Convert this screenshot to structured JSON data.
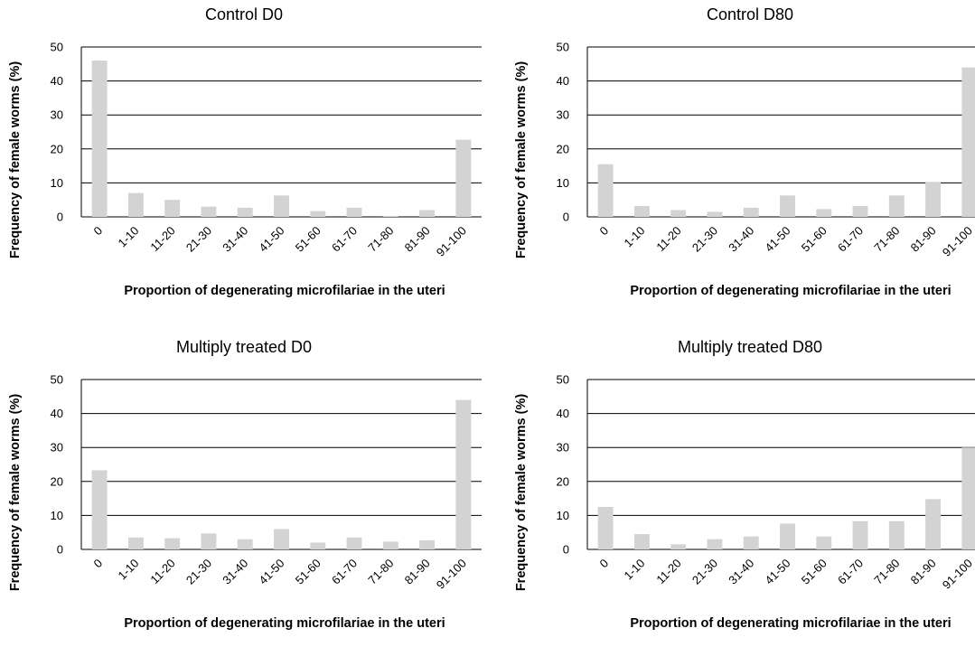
{
  "chart_data": [
    {
      "type": "bar",
      "title": "Control D0",
      "xlabel": "Proportion of degenerating microfilariae in the uteri",
      "ylabel": "Frequency of female worms (%)",
      "categories": [
        "0",
        "1-10",
        "11-20",
        "21-30",
        "31-40",
        "41-50",
        "51-60",
        "61-70",
        "71-80",
        "81-90",
        "91-100"
      ],
      "values": [
        46,
        7,
        5,
        3,
        2.7,
        6.3,
        1.7,
        2.7,
        0.3,
        2,
        22.7
      ],
      "ylim": [
        0,
        50
      ],
      "yticks": [
        0,
        10,
        20,
        30,
        40,
        50
      ],
      "grid": true,
      "bar_color": "#d3d3d3"
    },
    {
      "type": "bar",
      "title": "Control D80",
      "xlabel": "Proportion of degenerating microfilariae in the uteri",
      "ylabel": "Frequency of female worms (%)",
      "categories": [
        "0",
        "1-10",
        "11-20",
        "21-30",
        "31-40",
        "41-50",
        "51-60",
        "61-70",
        "71-80",
        "81-90",
        "91-100"
      ],
      "values": [
        15.5,
        3.2,
        2,
        1.5,
        2.7,
        6.3,
        2.3,
        3.2,
        6.3,
        10.3,
        44
      ],
      "ylim": [
        0,
        50
      ],
      "yticks": [
        0,
        10,
        20,
        30,
        40,
        50
      ],
      "grid": true,
      "bar_color": "#d3d3d3"
    },
    {
      "type": "bar",
      "title": "Multiply treated D0",
      "xlabel": "Proportion of degenerating microfilariae in the uteri",
      "ylabel": "Frequency of female worms (%)",
      "categories": [
        "0",
        "1-10",
        "11-20",
        "21-30",
        "31-40",
        "41-50",
        "51-60",
        "61-70",
        "71-80",
        "81-90",
        "91-100"
      ],
      "values": [
        23.3,
        3.5,
        3.3,
        4.7,
        3,
        6,
        2,
        3.5,
        2.3,
        2.7,
        44
      ],
      "ylim": [
        0,
        50
      ],
      "yticks": [
        0,
        10,
        20,
        30,
        40,
        50
      ],
      "grid": true,
      "bar_color": "#d3d3d3"
    },
    {
      "type": "bar",
      "title": "Multiply treated D80",
      "xlabel": "Proportion of degenerating microfilariae in the uteri",
      "ylabel": "Frequency of female worms (%)",
      "categories": [
        "0",
        "1-10",
        "11-20",
        "21-30",
        "31-40",
        "41-50",
        "51-60",
        "61-70",
        "71-80",
        "81-90",
        "91-100"
      ],
      "values": [
        12.5,
        4.5,
        1.5,
        3,
        3.8,
        7.6,
        3.8,
        8.3,
        8.3,
        14.8,
        30
      ],
      "ylim": [
        0,
        50
      ],
      "yticks": [
        0,
        10,
        20,
        30,
        40,
        50
      ],
      "grid": true,
      "bar_color": "#d3d3d3"
    }
  ]
}
